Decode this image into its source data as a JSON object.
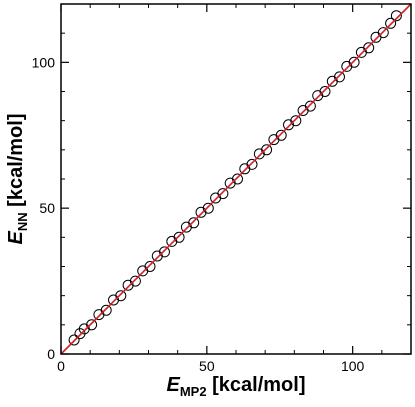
{
  "chart_data": {
    "type": "scatter",
    "xlabel_main": "E",
    "xlabel_sub": "MP2",
    "xlabel_unit": " [kcal/mol]",
    "ylabel_main": "E",
    "ylabel_sub": "NN",
    "ylabel_unit": " [kcal/mol]",
    "xlim": [
      0,
      120
    ],
    "ylim": [
      0,
      120
    ],
    "xticks": [
      0,
      50,
      100
    ],
    "yticks": [
      0,
      50,
      100
    ],
    "grid": false,
    "marker": "open-circle",
    "marker_color": "#000000",
    "reference_line": {
      "from": [
        0,
        0
      ],
      "to": [
        120,
        120
      ],
      "color": "#cc2222"
    },
    "series": [
      {
        "x": [
          4.5,
          6.5,
          8.0,
          10.5,
          13.0,
          15.5,
          18.0,
          20.5,
          23.0,
          25.5,
          28.0,
          30.5,
          33.0,
          35.5,
          38.0,
          40.5,
          43.0,
          45.5,
          48.0,
          50.5,
          53.0,
          55.5,
          58.0,
          60.5,
          63.0,
          65.5,
          68.0,
          70.5,
          73.0,
          75.5,
          78.0,
          80.5,
          83.0,
          85.5,
          88.0,
          90.5,
          93.0,
          95.5,
          98.0,
          100.5,
          103.0,
          105.5,
          108.0,
          110.5,
          113.0,
          115.0
        ],
        "y": [
          4.8,
          7.0,
          8.6,
          10.0,
          13.5,
          15.0,
          18.5,
          20.0,
          23.6,
          25.0,
          28.5,
          30.0,
          33.6,
          35.0,
          38.6,
          40.0,
          43.5,
          45.0,
          48.6,
          50.0,
          53.5,
          55.0,
          58.6,
          60.0,
          63.5,
          65.0,
          68.6,
          70.0,
          73.5,
          75.0,
          78.6,
          80.0,
          83.5,
          85.0,
          88.6,
          90.0,
          93.5,
          95.0,
          98.6,
          100.0,
          103.4,
          105.0,
          108.6,
          110.2,
          113.4,
          116.0
        ]
      }
    ]
  }
}
